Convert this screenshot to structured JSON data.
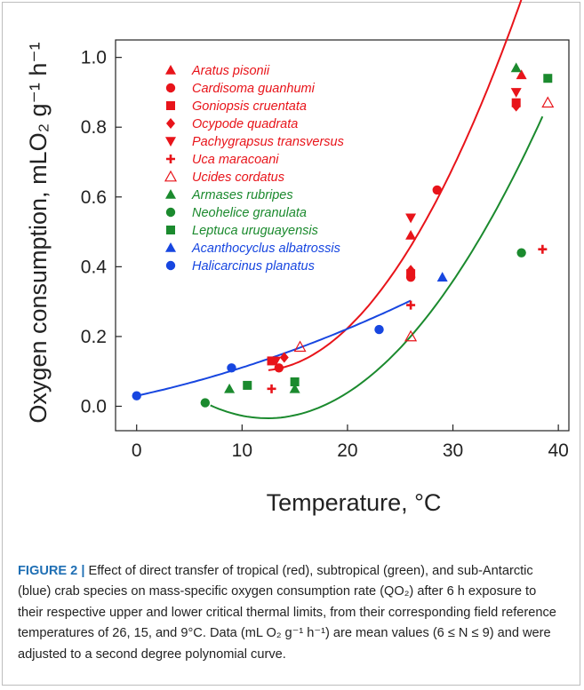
{
  "chart_data": {
    "type": "scatter",
    "xlabel": "Temperature, °C",
    "ylabel": "Oxygen consumption, mLO₂ g⁻¹ h⁻¹",
    "xlim": [
      -2,
      41
    ],
    "ylim": [
      -0.07,
      1.05
    ],
    "xticks": [
      "0",
      "10",
      "20",
      "30",
      "40"
    ],
    "yticks": [
      "0.0",
      "0.2",
      "0.4",
      "0.6",
      "0.8",
      "1.0"
    ],
    "grid": false,
    "legend_position": "top-left",
    "groups": [
      {
        "color": "#e8141a",
        "curve": {
          "x_from": 12.5,
          "x_to": 38.5,
          "coef": [
            0.33,
            -0.0395,
            0.00171
          ]
        }
      },
      {
        "color": "#1b8a2e",
        "curve": {
          "x_from": 7,
          "x_to": 38.5,
          "coef": [
            0.161,
            -0.0315,
            0.00127
          ]
        }
      },
      {
        "color": "#1746e0",
        "curve": {
          "x_from": 0,
          "x_to": 26,
          "coef": [
            0.03,
            0.0066,
            0.00015
          ]
        }
      }
    ],
    "series": [
      {
        "name": "Aratus pisonii",
        "group": 0,
        "marker": "triangle",
        "points": [
          [
            26,
            0.49
          ],
          [
            36.5,
            0.95
          ]
        ]
      },
      {
        "name": "Cardisoma guanhumi",
        "group": 0,
        "marker": "circle",
        "points": [
          [
            13.5,
            0.11
          ],
          [
            26,
            0.37
          ],
          [
            28.5,
            0.62
          ]
        ]
      },
      {
        "name": "Goniopsis cruentata",
        "group": 0,
        "marker": "square",
        "points": [
          [
            12.8,
            0.13
          ],
          [
            26,
            0.38
          ],
          [
            36,
            0.87
          ]
        ]
      },
      {
        "name": "Ocypode quadrata",
        "group": 0,
        "marker": "diamond",
        "points": [
          [
            14,
            0.14
          ],
          [
            26,
            0.39
          ],
          [
            36,
            0.86
          ]
        ]
      },
      {
        "name": "Pachygrapsus transversus",
        "group": 0,
        "marker": "triangle-down",
        "points": [
          [
            13.2,
            0.13
          ],
          [
            26,
            0.54
          ],
          [
            36,
            0.9
          ]
        ]
      },
      {
        "name": "Uca maracoani",
        "group": 0,
        "marker": "plus",
        "points": [
          [
            12.8,
            0.05
          ],
          [
            26,
            0.29
          ],
          [
            38.5,
            0.45
          ]
        ]
      },
      {
        "name": "Ucides cordatus",
        "group": 0,
        "marker": "triangle-open",
        "points": [
          [
            15.5,
            0.17
          ],
          [
            26,
            0.2
          ],
          [
            39,
            0.87
          ]
        ]
      },
      {
        "name": "Armases rubripes",
        "group": 1,
        "marker": "triangle",
        "points": [
          [
            8.8,
            0.05
          ],
          [
            15,
            0.05
          ],
          [
            36,
            0.97
          ]
        ]
      },
      {
        "name": "Neohelice granulata",
        "group": 1,
        "marker": "circle",
        "points": [
          [
            6.5,
            0.01
          ],
          [
            36.5,
            0.44
          ]
        ]
      },
      {
        "name": "Leptuca uruguayensis",
        "group": 1,
        "marker": "square",
        "points": [
          [
            10.5,
            0.06
          ],
          [
            15,
            0.07
          ],
          [
            39,
            0.94
          ]
        ]
      },
      {
        "name": "Acanthocyclus albatrossis",
        "group": 2,
        "marker": "triangle",
        "points": [
          [
            29,
            0.37
          ]
        ]
      },
      {
        "name": "Halicarcinus planatus",
        "group": 2,
        "marker": "circle",
        "points": [
          [
            0,
            0.03
          ],
          [
            9,
            0.11
          ],
          [
            23,
            0.22
          ]
        ]
      }
    ]
  },
  "caption": {
    "label": "FIGURE 2 |",
    "text": "Effect of direct transfer of tropical (red), subtropical (green), and sub-Antarctic (blue) crab species on mass-specific oxygen consumption rate (QO₂) after 6 h exposure to their respective upper and lower critical thermal limits, from their corresponding field reference temperatures of 26, 15, and 9°C. Data (mL O₂ g⁻¹ h⁻¹) are mean values (6 ≤ N ≤ 9) and were adjusted to a second degree polynomial curve."
  }
}
